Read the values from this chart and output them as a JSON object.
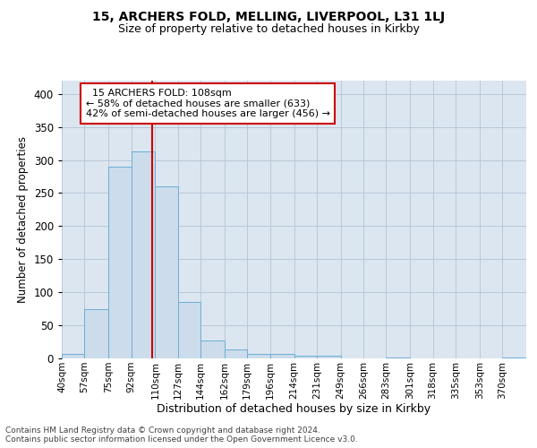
{
  "title1": "15, ARCHERS FOLD, MELLING, LIVERPOOL, L31 1LJ",
  "title2": "Size of property relative to detached houses in Kirkby",
  "xlabel": "Distribution of detached houses by size in Kirkby",
  "ylabel": "Number of detached properties",
  "footer1": "Contains HM Land Registry data © Crown copyright and database right 2024.",
  "footer2": "Contains public sector information licensed under the Open Government Licence v3.0.",
  "annotation_line1": "15 ARCHERS FOLD: 108sqm",
  "annotation_line2": "← 58% of detached houses are smaller (633)",
  "annotation_line3": "42% of semi-detached houses are larger (456) →",
  "property_size": 108,
  "bin_edges": [
    40,
    57,
    75,
    92,
    110,
    127,
    144,
    162,
    179,
    196,
    214,
    231,
    249,
    266,
    283,
    301,
    318,
    335,
    353,
    370,
    388
  ],
  "bar_heights": [
    7,
    75,
    290,
    313,
    260,
    85,
    27,
    14,
    7,
    7,
    4,
    4,
    0,
    0,
    2,
    0,
    0,
    0,
    0,
    2
  ],
  "bar_color": "#ccdcea",
  "bar_edge_color": "#6aaed6",
  "vline_color": "#cc0000",
  "grid_color": "#b8c8d8",
  "bg_color": "#dce6f0",
  "annotation_box_edgecolor": "#cc0000",
  "ylim": [
    0,
    420
  ],
  "yticks": [
    0,
    50,
    100,
    150,
    200,
    250,
    300,
    350,
    400
  ],
  "title1_fontsize": 10,
  "title2_fontsize": 9,
  "xlabel_fontsize": 9,
  "ylabel_fontsize": 8.5,
  "xtick_fontsize": 7.5,
  "ytick_fontsize": 8.5,
  "annot_fontsize": 8,
  "footer_fontsize": 6.5
}
